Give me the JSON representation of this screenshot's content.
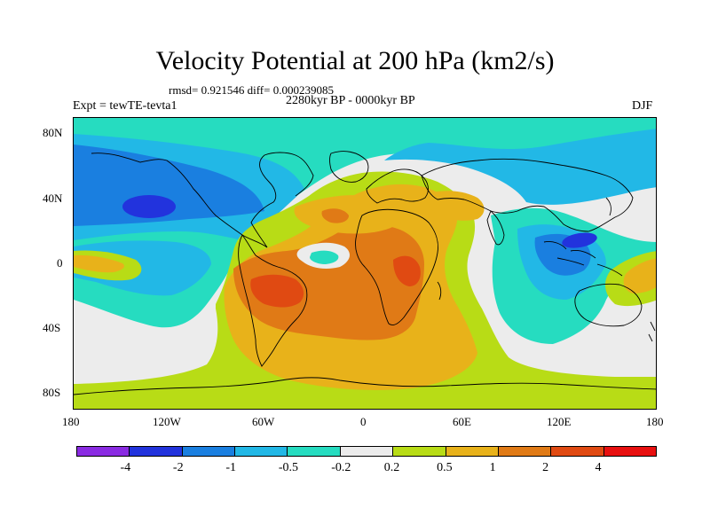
{
  "header": {
    "title": "Velocity Potential at 200 hPa (km2/s)",
    "stats": "rmsd= 0.921546 diff= 0.000239085",
    "experiment": "Expt = tewTE-tevta1",
    "period": "2280kyr BP - 0000kyr BP",
    "season": "DJF"
  },
  "axes": {
    "lat_labels": [
      "80N",
      "40N",
      "0",
      "40S",
      "80S"
    ],
    "lon_labels": [
      "180",
      "120W",
      "60W",
      "0",
      "60E",
      "120E",
      "180"
    ]
  },
  "colorbar": {
    "labels": [
      "-4",
      "-2",
      "-1",
      "-0.5",
      "-0.2",
      "0.2",
      "0.5",
      "1",
      "2",
      "4"
    ],
    "colors": [
      "#8a2be2",
      "#2233dd",
      "#1a7fe0",
      "#22b8e6",
      "#26dcc0",
      "#ececec",
      "#b8dc16",
      "#e8b21a",
      "#e07a16",
      "#e04a12",
      "#e81010"
    ]
  },
  "map": {
    "projection": "cylindrical equidistant",
    "field": "velocity potential difference",
    "colors": {
      "neutral": "#ececec",
      "neg_02": "#26dcc0",
      "neg_05": "#22b8e6",
      "neg_1": "#1a7fe0",
      "neg_2": "#2233dd",
      "pos_02": "#b8dc16",
      "pos_05": "#e8b21a",
      "pos_1": "#e07a16",
      "pos_2": "#e04a12",
      "coastline": "#000000"
    }
  }
}
